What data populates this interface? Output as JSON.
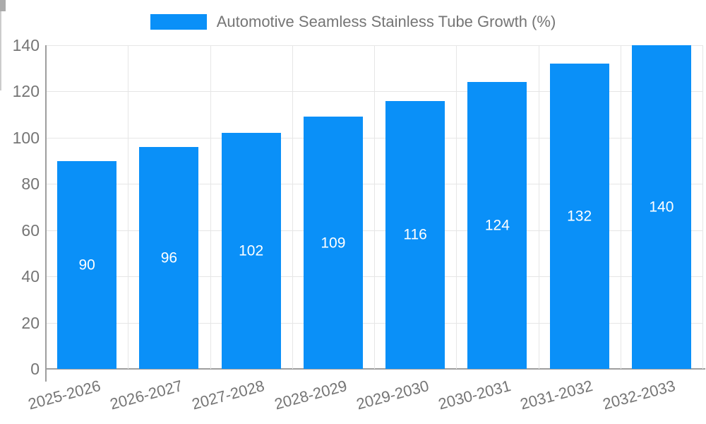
{
  "legend": {
    "label": "Automotive Seamless Stainless Tube Growth (%)"
  },
  "chart_data": {
    "type": "bar",
    "title": "",
    "series_name": "Automotive Seamless Stainless Tube Growth (%)",
    "categories": [
      "2025-2026",
      "2026-2027",
      "2027-2028",
      "2028-2029",
      "2029-2030",
      "2030-2031",
      "2031-2032",
      "2032-2033"
    ],
    "values": [
      90,
      96,
      102,
      109,
      116,
      124,
      132,
      140
    ],
    "value_labels_shown": true,
    "xlabel": "",
    "ylabel": "",
    "ylim": [
      0,
      140
    ],
    "yticks": [
      0,
      20,
      40,
      60,
      80,
      100,
      120,
      140
    ],
    "legend_position": "top-center",
    "grid": true,
    "colors": {
      "bar": "#0a90f8",
      "gridline": "#e6e6e6",
      "axis_line": "#9e9e9e",
      "tick": "#cccccc",
      "axis_text": "#757575",
      "bar_label_text": "#ffffff",
      "background": "#ffffff"
    }
  }
}
